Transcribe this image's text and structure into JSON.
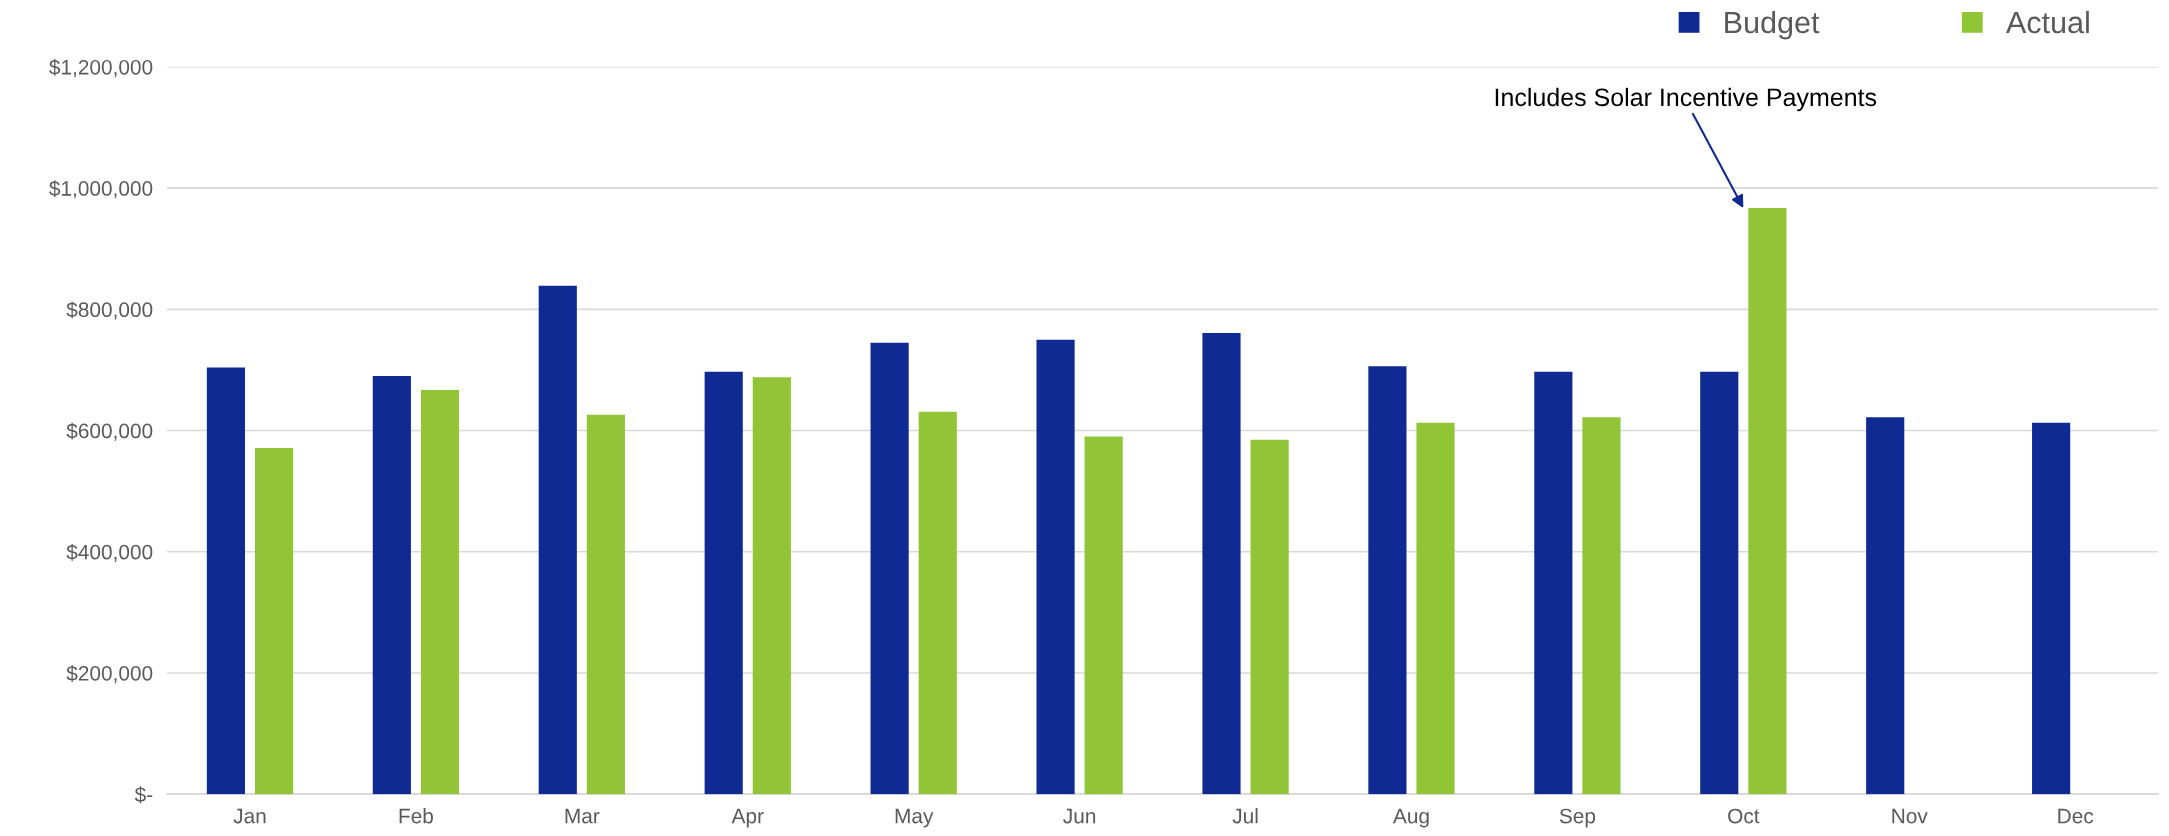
{
  "chart_data": {
    "type": "bar",
    "categories": [
      "Jan",
      "Feb",
      "Mar",
      "Apr",
      "May",
      "Jun",
      "Jul",
      "Aug",
      "Sep",
      "Oct",
      "Nov",
      "Dec"
    ],
    "series": [
      {
        "name": "Budget",
        "color": "#0f2a92",
        "values": [
          704000,
          690000,
          839000,
          697000,
          745000,
          750000,
          761000,
          706000,
          697000,
          697000,
          622000,
          613000
        ]
      },
      {
        "name": "Actual",
        "color": "#92c437",
        "values": [
          571000,
          667000,
          626000,
          688000,
          631000,
          590000,
          585000,
          613000,
          622000,
          967000,
          null,
          null
        ]
      }
    ],
    "ylim": [
      0,
      1200000
    ],
    "yticks": [
      {
        "value": 0,
        "label": "$-"
      },
      {
        "value": 200000,
        "label": "$200,000"
      },
      {
        "value": 400000,
        "label": "$400,000"
      },
      {
        "value": 600000,
        "label": "$600,000"
      },
      {
        "value": 800000,
        "label": "$800,000"
      },
      {
        "value": 1000000,
        "label": "$1,000,000"
      },
      {
        "value": 1200000,
        "label": "$1,200,000"
      }
    ],
    "grid": "y",
    "legend": "top right",
    "marker": "square",
    "annotations": [
      {
        "text": "Includes Solar Incentive Payments",
        "x": "Oct",
        "y": 967000
      }
    ]
  }
}
